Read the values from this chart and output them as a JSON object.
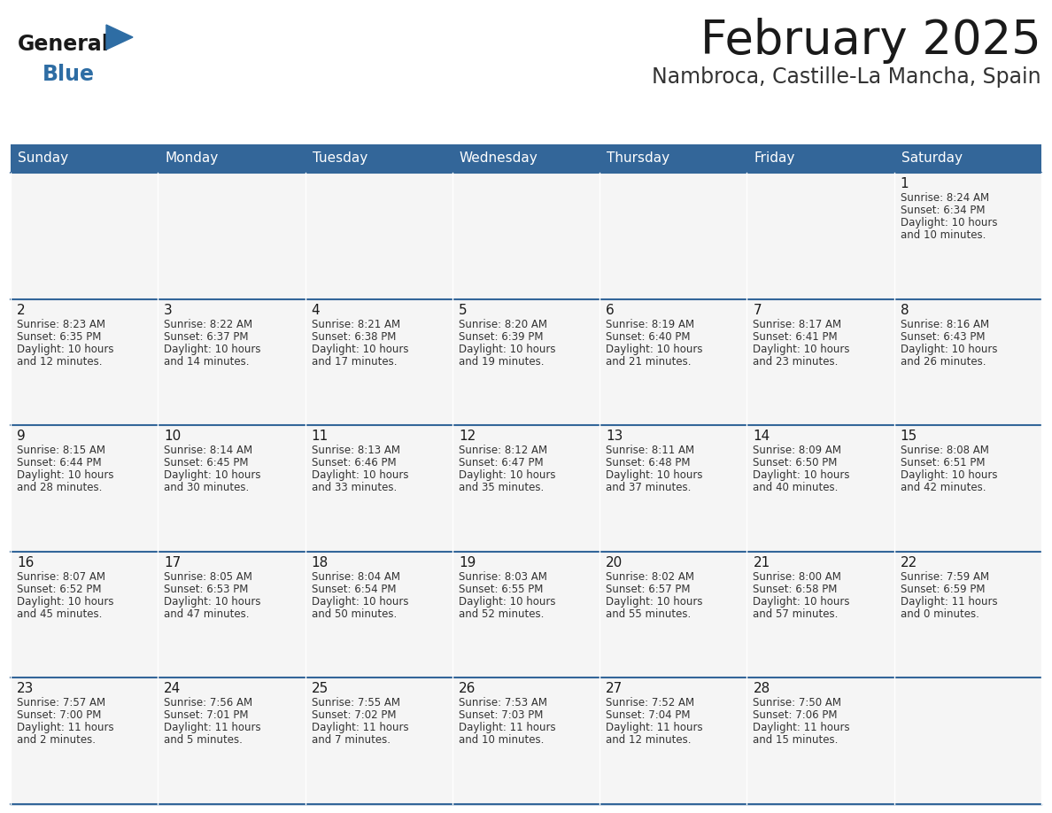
{
  "title": "February 2025",
  "subtitle": "Nambroca, Castille-La Mancha, Spain",
  "days_of_week": [
    "Sunday",
    "Monday",
    "Tuesday",
    "Wednesday",
    "Thursday",
    "Friday",
    "Saturday"
  ],
  "header_bg": "#336699",
  "header_text": "#FFFFFF",
  "cell_bg": "#F5F5F5",
  "line_color": "#336699",
  "title_color": "#1a1a1a",
  "subtitle_color": "#333333",
  "text_color": "#333333",
  "day_num_color": "#1a1a1a",
  "logo_general_color": "#1a1a1a",
  "logo_blue_color": "#2E6DA4",
  "calendar_data": [
    [
      {
        "day": null,
        "sunrise": null,
        "sunset": null,
        "daylight": null
      },
      {
        "day": null,
        "sunrise": null,
        "sunset": null,
        "daylight": null
      },
      {
        "day": null,
        "sunrise": null,
        "sunset": null,
        "daylight": null
      },
      {
        "day": null,
        "sunrise": null,
        "sunset": null,
        "daylight": null
      },
      {
        "day": null,
        "sunrise": null,
        "sunset": null,
        "daylight": null
      },
      {
        "day": null,
        "sunrise": null,
        "sunset": null,
        "daylight": null
      },
      {
        "day": 1,
        "sunrise": "8:24 AM",
        "sunset": "6:34 PM",
        "daylight": "10 hours\nand 10 minutes."
      }
    ],
    [
      {
        "day": 2,
        "sunrise": "8:23 AM",
        "sunset": "6:35 PM",
        "daylight": "10 hours\nand 12 minutes."
      },
      {
        "day": 3,
        "sunrise": "8:22 AM",
        "sunset": "6:37 PM",
        "daylight": "10 hours\nand 14 minutes."
      },
      {
        "day": 4,
        "sunrise": "8:21 AM",
        "sunset": "6:38 PM",
        "daylight": "10 hours\nand 17 minutes."
      },
      {
        "day": 5,
        "sunrise": "8:20 AM",
        "sunset": "6:39 PM",
        "daylight": "10 hours\nand 19 minutes."
      },
      {
        "day": 6,
        "sunrise": "8:19 AM",
        "sunset": "6:40 PM",
        "daylight": "10 hours\nand 21 minutes."
      },
      {
        "day": 7,
        "sunrise": "8:17 AM",
        "sunset": "6:41 PM",
        "daylight": "10 hours\nand 23 minutes."
      },
      {
        "day": 8,
        "sunrise": "8:16 AM",
        "sunset": "6:43 PM",
        "daylight": "10 hours\nand 26 minutes."
      }
    ],
    [
      {
        "day": 9,
        "sunrise": "8:15 AM",
        "sunset": "6:44 PM",
        "daylight": "10 hours\nand 28 minutes."
      },
      {
        "day": 10,
        "sunrise": "8:14 AM",
        "sunset": "6:45 PM",
        "daylight": "10 hours\nand 30 minutes."
      },
      {
        "day": 11,
        "sunrise": "8:13 AM",
        "sunset": "6:46 PM",
        "daylight": "10 hours\nand 33 minutes."
      },
      {
        "day": 12,
        "sunrise": "8:12 AM",
        "sunset": "6:47 PM",
        "daylight": "10 hours\nand 35 minutes."
      },
      {
        "day": 13,
        "sunrise": "8:11 AM",
        "sunset": "6:48 PM",
        "daylight": "10 hours\nand 37 minutes."
      },
      {
        "day": 14,
        "sunrise": "8:09 AM",
        "sunset": "6:50 PM",
        "daylight": "10 hours\nand 40 minutes."
      },
      {
        "day": 15,
        "sunrise": "8:08 AM",
        "sunset": "6:51 PM",
        "daylight": "10 hours\nand 42 minutes."
      }
    ],
    [
      {
        "day": 16,
        "sunrise": "8:07 AM",
        "sunset": "6:52 PM",
        "daylight": "10 hours\nand 45 minutes."
      },
      {
        "day": 17,
        "sunrise": "8:05 AM",
        "sunset": "6:53 PM",
        "daylight": "10 hours\nand 47 minutes."
      },
      {
        "day": 18,
        "sunrise": "8:04 AM",
        "sunset": "6:54 PM",
        "daylight": "10 hours\nand 50 minutes."
      },
      {
        "day": 19,
        "sunrise": "8:03 AM",
        "sunset": "6:55 PM",
        "daylight": "10 hours\nand 52 minutes."
      },
      {
        "day": 20,
        "sunrise": "8:02 AM",
        "sunset": "6:57 PM",
        "daylight": "10 hours\nand 55 minutes."
      },
      {
        "day": 21,
        "sunrise": "8:00 AM",
        "sunset": "6:58 PM",
        "daylight": "10 hours\nand 57 minutes."
      },
      {
        "day": 22,
        "sunrise": "7:59 AM",
        "sunset": "6:59 PM",
        "daylight": "11 hours\nand 0 minutes."
      }
    ],
    [
      {
        "day": 23,
        "sunrise": "7:57 AM",
        "sunset": "7:00 PM",
        "daylight": "11 hours\nand 2 minutes."
      },
      {
        "day": 24,
        "sunrise": "7:56 AM",
        "sunset": "7:01 PM",
        "daylight": "11 hours\nand 5 minutes."
      },
      {
        "day": 25,
        "sunrise": "7:55 AM",
        "sunset": "7:02 PM",
        "daylight": "11 hours\nand 7 minutes."
      },
      {
        "day": 26,
        "sunrise": "7:53 AM",
        "sunset": "7:03 PM",
        "daylight": "11 hours\nand 10 minutes."
      },
      {
        "day": 27,
        "sunrise": "7:52 AM",
        "sunset": "7:04 PM",
        "daylight": "11 hours\nand 12 minutes."
      },
      {
        "day": 28,
        "sunrise": "7:50 AM",
        "sunset": "7:06 PM",
        "daylight": "11 hours\nand 15 minutes."
      },
      {
        "day": null,
        "sunrise": null,
        "sunset": null,
        "daylight": null
      }
    ]
  ]
}
